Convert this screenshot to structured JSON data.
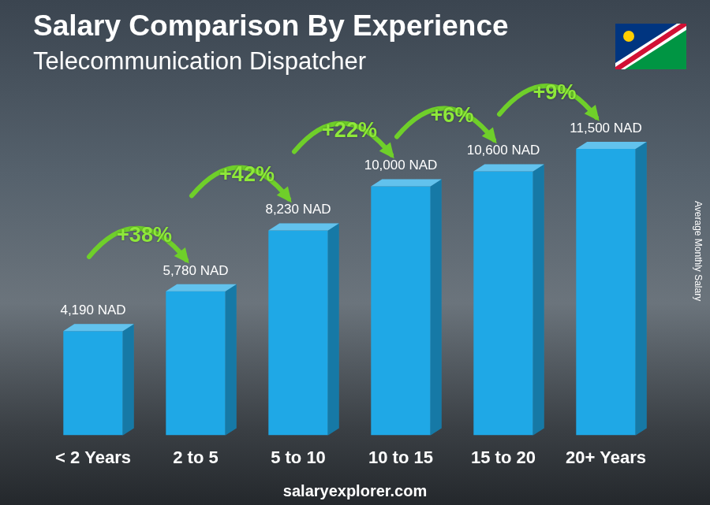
{
  "chart_data": {
    "type": "bar",
    "title": "Salary Comparison By Experience",
    "subtitle": "Telecommunication Dispatcher",
    "y_label": "Average Monthly Salary",
    "footer": "salaryexplorer.com",
    "categories": [
      "< 2 Years",
      "2 to 5",
      "5 to 10",
      "10 to 15",
      "15 to 20",
      "20+ Years"
    ],
    "values": [
      4190,
      5780,
      8230,
      10000,
      10600,
      11500
    ],
    "value_labels": [
      "4,190 NAD",
      "5,780 NAD",
      "8,230 NAD",
      "10,000 NAD",
      "10,600 NAD",
      "11,500 NAD"
    ],
    "changes": [
      {
        "value": 38,
        "label": "+38%"
      },
      {
        "value": 42,
        "label": "+42%"
      },
      {
        "value": 22,
        "label": "+22%"
      },
      {
        "value": 6,
        "label": "+6%"
      },
      {
        "value": 9,
        "label": "+9%"
      }
    ],
    "color": "#1fa8e6",
    "ylim": [
      0,
      14000
    ],
    "grid": false,
    "data_labels": true,
    "tick_labels": "x"
  }
}
